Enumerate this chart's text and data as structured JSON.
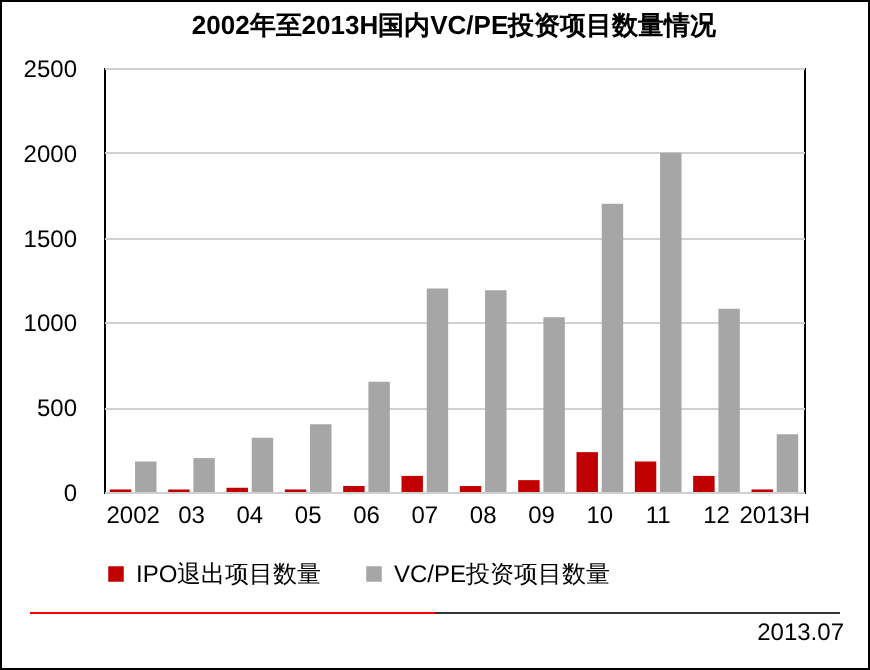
{
  "chart_data": {
    "type": "bar",
    "title": "2002年至2013H国内VC/PE投资项目数量情况",
    "categories": [
      "2002",
      "03",
      "04",
      "05",
      "06",
      "07",
      "08",
      "09",
      "10",
      "11",
      "12",
      "2013H"
    ],
    "series": [
      {
        "name": "IPO退出项目数量",
        "color": "#c00000",
        "values": [
          15,
          15,
          25,
          15,
          35,
          95,
          35,
          70,
          235,
          180,
          95,
          15
        ]
      },
      {
        "name": "VC/PE投资项目数量",
        "color": "#a6a6a6",
        "values": [
          180,
          200,
          320,
          400,
          650,
          1200,
          1190,
          1030,
          1700,
          2000,
          1080,
          340
        ]
      }
    ],
    "ylim": [
      0,
      2500
    ],
    "yticks": [
      0,
      500,
      1000,
      1500,
      2000,
      2500
    ],
    "grid": "y",
    "legend": "bottom",
    "annotations": [
      "2013.07"
    ]
  }
}
